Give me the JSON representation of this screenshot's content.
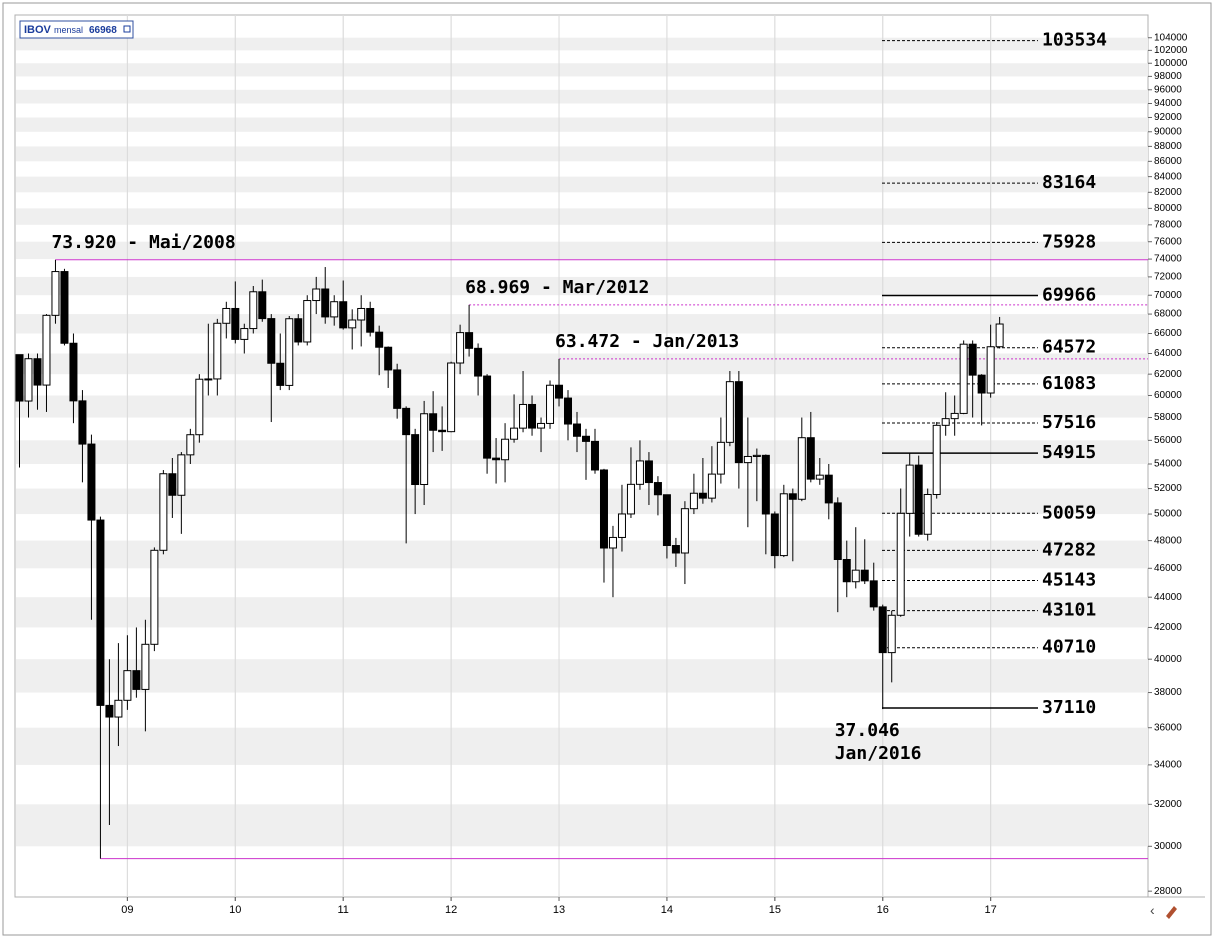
{
  "chart_data": {
    "type": "candlestick",
    "title": "IBOV",
    "subtitle": "mensal",
    "last_value": 66968,
    "up_color": "#ffffff",
    "down_color": "#000000",
    "open": [
      63886,
      59490,
      63489,
      60968,
      67868,
      72593,
      65017,
      59505,
      55680,
      49541,
      37257,
      36596,
      37550,
      39301,
      38183,
      40926,
      47290,
      53198,
      51465,
      54766,
      56488,
      61518,
      61546,
      67044,
      68588,
      65402,
      66503,
      70372,
      67529,
      63047,
      60936,
      67515,
      65145,
      69430,
      70673,
      67705,
      69305,
      66575,
      67383,
      68587,
      66133,
      64620,
      62404,
      58823,
      56495,
      52324,
      58338,
      56875,
      56754,
      63072,
      66089,
      64511,
      61820,
      54490,
      54355,
      56097,
      57061,
      59176,
      57068,
      57475,
      60952,
      59761,
      57424,
      56352,
      55910,
      53506,
      47457,
      48234,
      50008,
      52338,
      54256,
      52482,
      51507,
      47639,
      47094,
      50415,
      51626,
      51239,
      53168,
      55829,
      61288,
      54116,
      54629,
      54724,
      50007,
      46908,
      51583,
      51150,
      56229,
      52760,
      53081,
      50865,
      46626,
      45059,
      45868,
      45120,
      43350,
      40406,
      42793,
      50055,
      53910,
      48471,
      51527,
      57308,
      57901,
      58367,
      64924,
      61906,
      60227,
      64670
    ],
    "high": [
      63886,
      64000,
      64000,
      68000,
      73920,
      72900,
      66000,
      60500,
      56500,
      49800,
      40000,
      41000,
      41500,
      42000,
      42500,
      47500,
      53500,
      54500,
      55000,
      57000,
      62000,
      67000,
      67500,
      69300,
      71500,
      67000,
      71000,
      71700,
      68000,
      66000,
      67800,
      68000,
      70000,
      72000,
      73100,
      70000,
      71600,
      68500,
      70000,
      69300,
      66800,
      64700,
      63000,
      59000,
      57000,
      59500,
      60400,
      59000,
      63200,
      66900,
      68969,
      65000,
      62000,
      56200,
      57500,
      60100,
      62300,
      60000,
      58000,
      61400,
      63472,
      60500,
      58500,
      57000,
      57000,
      53600,
      49100,
      52300,
      55400,
      56000,
      55000,
      53000,
      51500,
      48200,
      51000,
      53200,
      54500,
      55500,
      58000,
      62300,
      62300,
      58000,
      55300,
      54800,
      50200,
      52300,
      52000,
      58000,
      58500,
      54500,
      54000,
      51300,
      48000,
      49000,
      48100,
      46400,
      43500,
      43100,
      52000,
      54900,
      54700,
      52000,
      57600,
      60300,
      60000,
      65300,
      65300,
      62000,
      66900,
      67700
    ],
    "low": [
      53709,
      58000,
      58700,
      58500,
      67000,
      64800,
      57500,
      52500,
      42500,
      29435,
      31000,
      35000,
      37000,
      37700,
      35800,
      40500,
      47000,
      49700,
      48500,
      54000,
      55800,
      60000,
      60000,
      65500,
      65000,
      64000,
      66000,
      67200,
      57600,
      60500,
      60500,
      64800,
      64800,
      68000,
      67000,
      66800,
      66400,
      64400,
      64700,
      65700,
      61900,
      60700,
      57900,
      47800,
      50000,
      50700,
      55000,
      55100,
      56700,
      62000,
      63700,
      60000,
      53200,
      52400,
      52500,
      55800,
      56700,
      56400,
      55000,
      57000,
      59000,
      56000,
      55000,
      52700,
      53200,
      45000,
      44000,
      47200,
      49700,
      51900,
      50700,
      49900,
      46700,
      46100,
      44900,
      50000,
      50800,
      50900,
      52400,
      55500,
      52000,
      49000,
      51000,
      47000,
      46000,
      46800,
      46500,
      51000,
      52500,
      52300,
      49600,
      43000,
      44000,
      44600,
      44900,
      43100,
      37046,
      38600,
      42700,
      48300,
      48300,
      48000,
      51200,
      56400,
      56400,
      58300,
      58000,
      57300,
      59800,
      64500
    ],
    "close": [
      59490,
      63489,
      60968,
      67868,
      72593,
      65017,
      59505,
      55680,
      49541,
      37257,
      36596,
      37550,
      39301,
      38183,
      40926,
      47290,
      53198,
      51465,
      54766,
      56488,
      61518,
      61546,
      67044,
      68588,
      65402,
      66503,
      70372,
      67529,
      63047,
      60936,
      67515,
      65145,
      69430,
      70673,
      67705,
      69305,
      66575,
      67383,
      68587,
      66133,
      64620,
      62404,
      58823,
      56495,
      52324,
      58338,
      56875,
      56754,
      63072,
      66089,
      64511,
      61820,
      54490,
      54355,
      56097,
      57061,
      59176,
      57068,
      57475,
      60952,
      59761,
      57424,
      56352,
      55910,
      53506,
      47457,
      48234,
      50008,
      52338,
      54256,
      52482,
      51507,
      47639,
      47094,
      50415,
      51626,
      51239,
      53168,
      55829,
      61288,
      54116,
      54629,
      54724,
      50007,
      46908,
      51583,
      51150,
      56229,
      52760,
      53081,
      50865,
      46626,
      45059,
      45868,
      45120,
      43350,
      40406,
      42793,
      50055,
      53910,
      48471,
      51527,
      57308,
      57901,
      58367,
      64924,
      61906,
      60227,
      64670,
      66968
    ],
    "xlim": [
      -0.5,
      125.5
    ],
    "xticks": [
      {
        "value": 12,
        "label": "09"
      },
      {
        "value": 24,
        "label": "10"
      },
      {
        "value": 36,
        "label": "11"
      },
      {
        "value": 48,
        "label": "12"
      },
      {
        "value": 60,
        "label": "13"
      },
      {
        "value": 72,
        "label": "14"
      },
      {
        "value": 84,
        "label": "15"
      },
      {
        "value": 96,
        "label": "16"
      },
      {
        "value": 108,
        "label": "17"
      }
    ],
    "ylim": [
      27750,
      107700
    ],
    "yticks": [
      28000,
      30000,
      32000,
      34000,
      36000,
      38000,
      40000,
      42000,
      44000,
      46000,
      48000,
      50000,
      52000,
      54000,
      56000,
      58000,
      60000,
      62000,
      64000,
      66000,
      68000,
      70000,
      72000,
      74000,
      76000,
      78000,
      80000,
      82000,
      84000,
      86000,
      88000,
      90000,
      92000,
      94000,
      96000,
      98000,
      100000,
      102000,
      104000
    ],
    "log_y": true,
    "grid": true,
    "levels": [
      {
        "value": 103534,
        "style": "dashed"
      },
      {
        "value": 83164,
        "style": "dashed"
      },
      {
        "value": 75928,
        "style": "dashed"
      },
      {
        "value": 69966,
        "style": "solid"
      },
      {
        "value": 64572,
        "style": "dashed"
      },
      {
        "value": 61083,
        "style": "dashed"
      },
      {
        "value": 57516,
        "style": "dashed"
      },
      {
        "value": 54915,
        "style": "solid"
      },
      {
        "value": 50059,
        "style": "dashed"
      },
      {
        "value": 47282,
        "style": "dashed"
      },
      {
        "value": 45143,
        "style": "dashed"
      },
      {
        "value": 43101,
        "style": "dashed"
      },
      {
        "value": 40710,
        "style": "dashed"
      },
      {
        "value": 37110,
        "style": "solid"
      }
    ],
    "support_lines": [
      {
        "value": 73920,
        "x": 4,
        "style": "solid",
        "color": "#cc33cc"
      },
      {
        "value": 68969,
        "x": 50,
        "style": "dotted",
        "color": "#cc33cc"
      },
      {
        "value": 63472,
        "x": 60,
        "style": "dotted",
        "color": "#cc33cc"
      },
      {
        "value": 29435,
        "x": 9,
        "style": "solid",
        "color": "#cc33cc"
      }
    ],
    "annotations": [
      {
        "lines": [
          "73.920 - Mai/2008"
        ],
        "value": 73920,
        "x": 4
      },
      {
        "lines": [
          "68.969 - Mar/2012"
        ],
        "value": 68969,
        "x": 50
      },
      {
        "lines": [
          "63.472 - Jan/2013"
        ],
        "value": 63472,
        "x": 60
      },
      {
        "lines": [
          "37.046",
          "Jan/2016"
        ],
        "value": 37046,
        "x": 96
      }
    ]
  }
}
